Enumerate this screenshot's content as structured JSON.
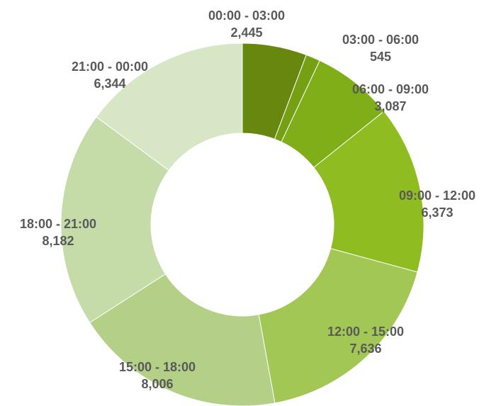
{
  "chart_data": {
    "type": "pie",
    "style": "donut",
    "title": "",
    "slices": [
      {
        "label": "00:00 - 03:00",
        "value": 2445,
        "value_label": "2,445",
        "color": "#67870f"
      },
      {
        "label": "03:00 - 06:00",
        "value": 545,
        "value_label": "545",
        "color": "#76a013"
      },
      {
        "label": "06:00 - 09:00",
        "value": 3087,
        "value_label": "3,087",
        "color": "#7fae19"
      },
      {
        "label": "09:00 - 12:00",
        "value": 6373,
        "value_label": "6,373",
        "color": "#8fbd21"
      },
      {
        "label": "12:00 - 15:00",
        "value": 7636,
        "value_label": "7,636",
        "color": "#a2c755"
      },
      {
        "label": "15:00 - 18:00",
        "value": 8006,
        "value_label": "8,006",
        "color": "#b3d086"
      },
      {
        "label": "18:00 - 21:00",
        "value": 8182,
        "value_label": "8,182",
        "color": "#c5dca8"
      },
      {
        "label": "21:00 - 00:00",
        "value": 6344,
        "value_label": "6,344",
        "color": "#d7e6c4"
      }
    ],
    "legend": "none"
  }
}
